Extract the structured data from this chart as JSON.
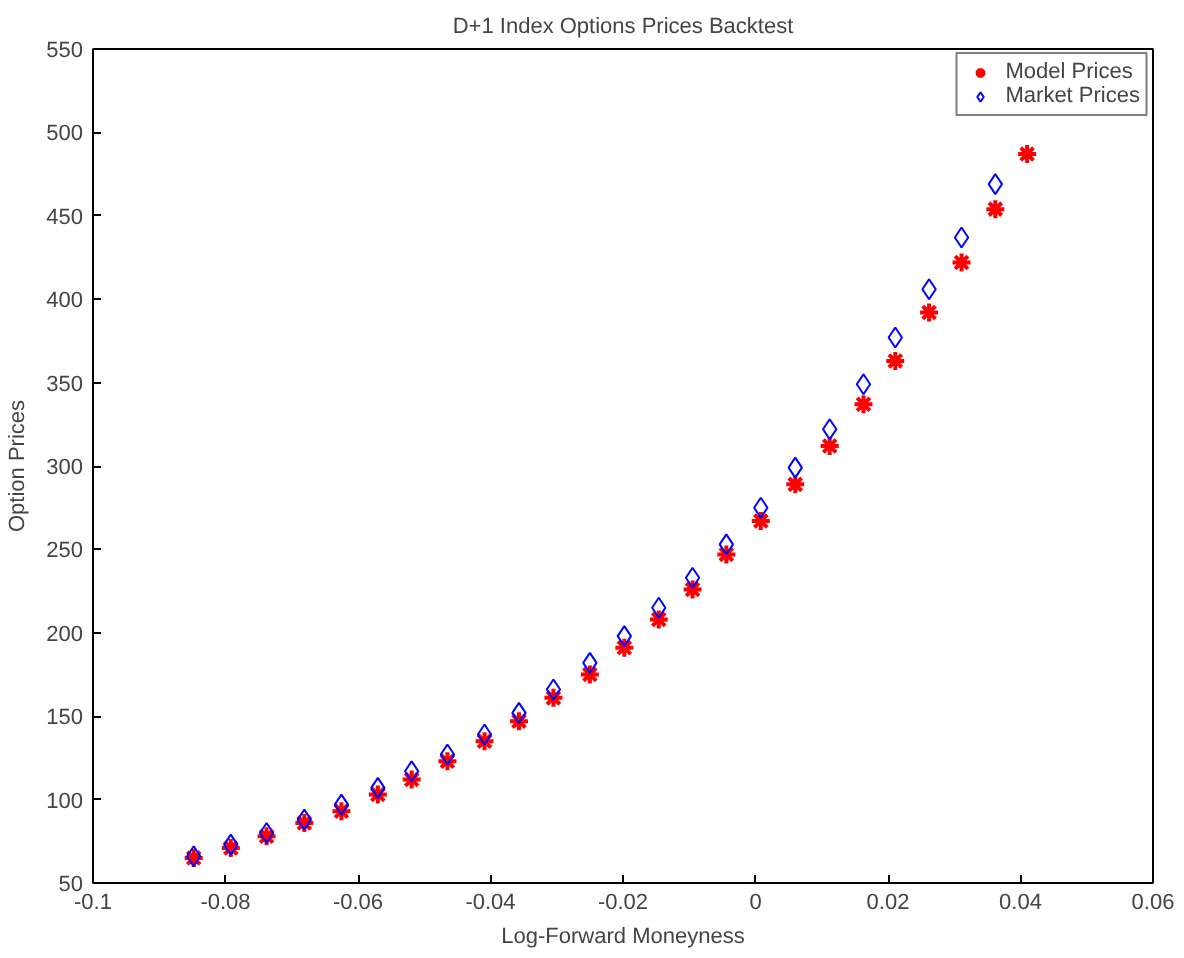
{
  "chart_data": {
    "type": "scatter",
    "title": "D+1 Index Options Prices Backtest",
    "xlabel": "Log-Forward Moneyness",
    "ylabel": "Option Prices",
    "x": [
      -0.0848,
      -0.0792,
      -0.0738,
      -0.0681,
      -0.0625,
      -0.057,
      -0.0519,
      -0.0465,
      -0.0409,
      -0.0357,
      -0.0305,
      -0.025,
      -0.0198,
      -0.0146,
      -0.0095,
      -0.0044,
      0.0008,
      0.006,
      0.0112,
      0.0163,
      0.0211,
      0.0262,
      0.0311,
      0.0362,
      0.041
    ],
    "series": [
      {
        "name": "Model Prices",
        "color": "#ff0000",
        "marker": "cross",
        "values": [
          65,
          71,
          78,
          86,
          93,
          103,
          112,
          123,
          135,
          147,
          161,
          175,
          191,
          208,
          226,
          247,
          267,
          289,
          312,
          337,
          363,
          392,
          422,
          454,
          487
        ]
      },
      {
        "name": "Market Prices",
        "color": "#0000ff",
        "marker": "diamond",
        "values": [
          66,
          73,
          80,
          88,
          97,
          107,
          117,
          127,
          139,
          152,
          166,
          182,
          198,
          215,
          233,
          253,
          275,
          299,
          322,
          349,
          377,
          406,
          437,
          469,
          null
        ]
      }
    ],
    "xlim": [
      -0.1,
      0.06
    ],
    "xticks": [
      -0.1,
      -0.08,
      -0.06,
      -0.04,
      -0.02,
      0,
      0.02,
      0.04,
      0.06
    ],
    "ylim": [
      50,
      550
    ],
    "yticks": [
      50,
      100,
      150,
      200,
      250,
      300,
      350,
      400,
      450,
      500,
      550
    ],
    "grid": false,
    "legend": "top right"
  }
}
